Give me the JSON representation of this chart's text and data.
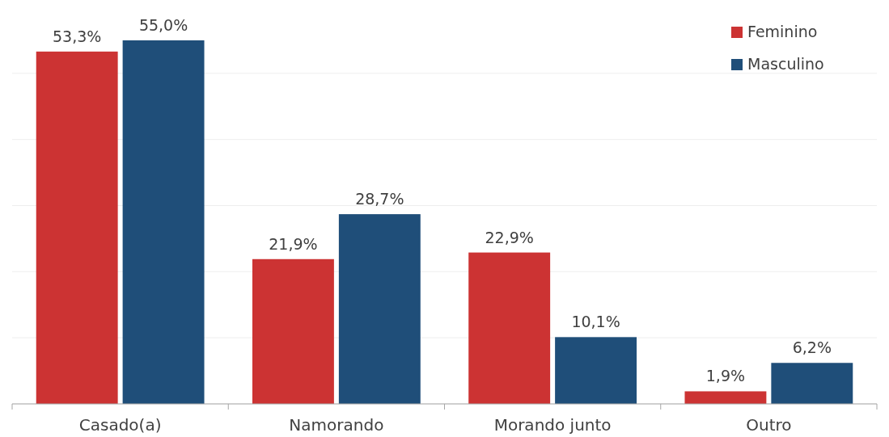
{
  "chart_data": {
    "type": "bar",
    "categories": [
      "Casado(a)",
      "Namorando",
      "Morando junto",
      "Outro"
    ],
    "series": [
      {
        "name": "Feminino",
        "color": "#cc3333",
        "values": [
          53.3,
          21.9,
          22.9,
          1.9
        ],
        "value_labels": [
          "53,3%",
          "21,9%",
          "22,9%",
          "1,9%"
        ]
      },
      {
        "name": "Masculino",
        "color": "#1f4e79",
        "values": [
          55.0,
          28.7,
          10.1,
          6.2
        ],
        "value_labels": [
          "55,0%",
          "28,7%",
          "10,1%",
          "6,2%"
        ]
      }
    ],
    "yticks": [
      0,
      10,
      20,
      30,
      40,
      50
    ],
    "tick_labels": "x",
    "grid": "y",
    "legend": "top right"
  }
}
